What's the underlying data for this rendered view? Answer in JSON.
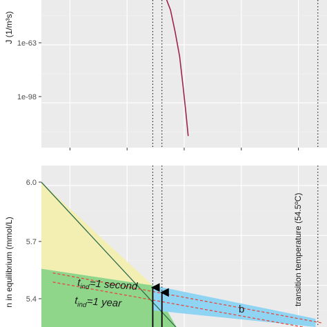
{
  "chart_data": [
    {
      "type": "line",
      "panel": "top",
      "ylabel": "J (1/m³s)",
      "y_scale": "log",
      "y_ticks": [
        "1e-63",
        "1e-98"
      ],
      "xlim": [
        15,
        65
      ],
      "ylim_log10": [
        -125,
        -36
      ],
      "x_ticks_unlabeled": [
        20,
        30,
        40,
        50,
        60
      ],
      "series": [
        {
          "color": "#9b2350",
          "x": [
            36.6,
            37.6,
            38.4,
            39.2,
            39.8,
            40.3,
            40.7
          ],
          "y_log10": [
            -33,
            -42,
            -55,
            -70,
            -88,
            -104,
            -118
          ]
        }
      ],
      "vlines": [
        34.5,
        36.1,
        63.4
      ]
    },
    {
      "type": "area",
      "panel": "bottom",
      "ylabel": "n in equilibrium (mmol/L)",
      "y_ticks": [
        "6.0",
        "5.7",
        "5.4"
      ],
      "xlim": [
        15,
        65
      ],
      "ylim": [
        5.15,
        6.12
      ],
      "series": [
        {
          "color": "#2e6b4e",
          "x": [
            15,
            38.8
          ],
          "y": [
            6.02,
            5.14
          ]
        }
      ],
      "regions": [
        {
          "color": "#f3efb2",
          "x": [
            15,
            34.5
          ],
          "y_top": [
            6.02,
            5.4
          ],
          "y_bottom": [
            5.5,
            5.4
          ]
        },
        {
          "color": "#8fd68b",
          "x": [
            15,
            34.5,
            38.8
          ],
          "y_top": [
            5.5,
            5.4,
            5.14
          ],
          "y_bottom": [
            5.15,
            5.15,
            5.15
          ]
        },
        {
          "color": "#8fd4f3",
          "x": [
            34.5,
            63.0
          ],
          "y_top": [
            5.4,
            5.2
          ],
          "y_bottom": [
            5.25,
            5.15
          ]
        }
      ],
      "reference_lines": [
        {
          "color": "#e7453b",
          "style": "dashed",
          "x": [
            17,
            64
          ],
          "y": [
            5.475,
            5.175
          ]
        },
        {
          "color": "#e7453b",
          "style": "dashed",
          "x": [
            17,
            64
          ],
          "y": [
            5.42,
            5.13
          ]
        }
      ],
      "vlines": [
        34.5,
        36.1,
        63.4
      ],
      "arrows": [
        {
          "x": 34.5,
          "y_from": 5.15,
          "y_to": 5.4
        },
        {
          "x": 36.1,
          "y_from": 5.15,
          "y_to": 5.37
        }
      ],
      "annotations": {
        "tind_second_main": "t",
        "tind_second_sub": "ind",
        "tind_second_rest": "=1 second",
        "tind_year_main": "t",
        "tind_year_sub": "ind",
        "tind_year_rest": "=1 year",
        "b_label": "b",
        "transition": "transition temperature (54.5ºC)"
      }
    }
  ]
}
